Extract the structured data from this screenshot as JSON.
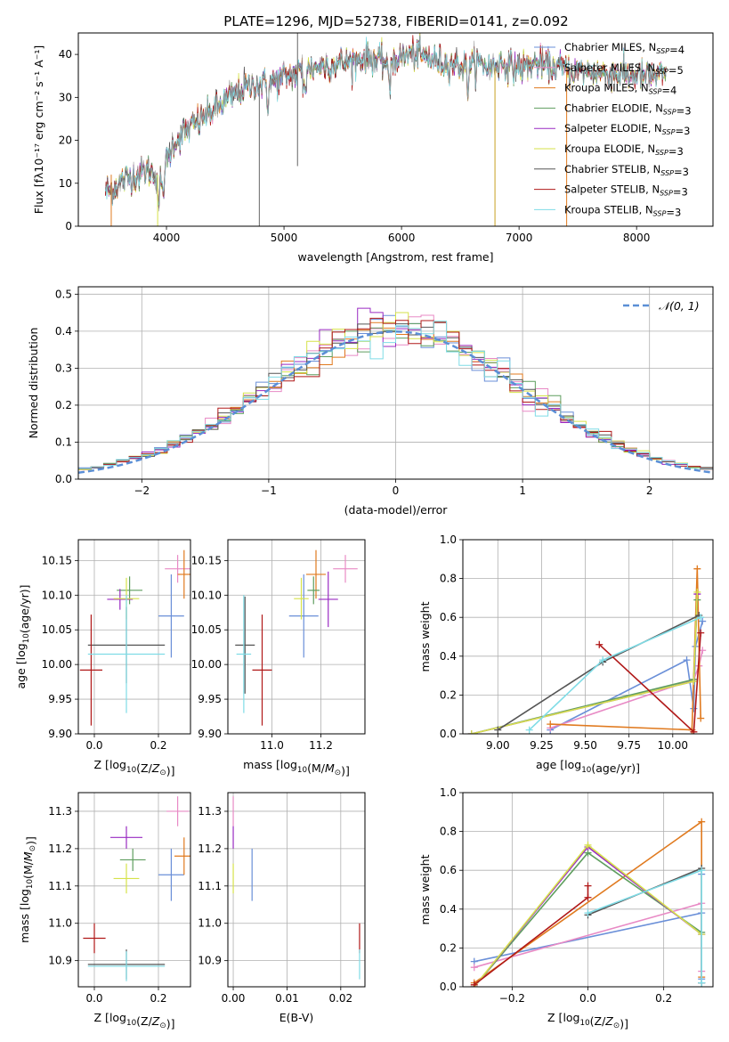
{
  "figure_title": "PLATE=1296, MJD=52738, FIBERID=0141, z=0.092",
  "colors": {
    "Chabrier MILES": "#6a8fd8",
    "Salpeter MILES": "#e88ac5",
    "Kroupa MILES": "#e07a1f",
    "Chabrier ELODIE": "#5f9e5f",
    "Salpeter ELODIE": "#9a2bc2",
    "Kroupa ELODIE": "#d6e24a",
    "Chabrier STELIB": "#555555",
    "Salpeter STELIB": "#b01818",
    "Kroupa STELIB": "#7fdce6",
    "normal_curve": "#5b8fd6"
  },
  "chart_data": [
    {
      "id": "spectrum",
      "type": "line",
      "title": "PLATE=1296, MJD=52738, FIBERID=0141, z=0.092",
      "xlabel": "wavelength [Angstrom, rest frame]",
      "ylabel": "Flux [fλ10⁻¹⁷ erg cm⁻² s⁻¹ A⁻¹]",
      "xlim": [
        3250,
        8650
      ],
      "ylim": [
        0,
        45
      ],
      "xticks": [
        4000,
        5000,
        6000,
        7000,
        8000
      ],
      "yticks": [
        0,
        10,
        20,
        30,
        40
      ],
      "grid": false,
      "legend": "upper right",
      "legend_entries": [
        "Chabrier MILES, N_SSP=4",
        "Salpeter MILES, N_SSP=5",
        "Kroupa MILES, N_SSP=4",
        "Chabrier ELODIE, N_SSP=3",
        "Salpeter ELODIE, N_SSP=3",
        "Kroupa ELODIE, N_SSP=3",
        "Chabrier STELIB, N_SSP=3",
        "Salpeter STELIB, N_SSP=3",
        "Kroupa STELIB, N_SSP=3"
      ],
      "continuum": {
        "x": [
          3480,
          3550,
          3650,
          3750,
          3850,
          3950,
          4050,
          4150,
          4250,
          4350,
          4450,
          4550,
          4650,
          4750,
          4850,
          4950,
          5050,
          5150,
          5250,
          5350,
          5450,
          5550,
          5650,
          5750,
          5850,
          5950,
          6050,
          6150,
          6250,
          6350,
          6450,
          6550,
          6650,
          6750,
          6850,
          6950,
          7050,
          7150,
          7250,
          7350,
          7450,
          7550,
          7650,
          7750,
          7850,
          7950,
          8050,
          8150,
          8250
        ],
        "y": [
          8,
          9,
          11,
          12,
          13,
          11,
          19,
          22,
          24,
          26,
          28,
          30,
          32,
          33,
          33,
          34,
          35,
          36,
          37,
          37.5,
          38,
          38,
          39,
          39,
          38,
          39,
          40,
          40,
          39,
          38,
          38,
          37,
          38,
          37,
          38,
          37,
          37,
          38,
          37,
          37,
          36,
          36,
          36,
          35.5,
          35.5,
          35,
          35,
          35,
          35
        ]
      },
      "spikes": [
        {
          "x": 4790,
          "y_top": 33,
          "y_bottom": 0
        },
        {
          "x": 5115,
          "y_top": 45,
          "y_bottom": 14
        },
        {
          "x": 6795,
          "y_top": 37,
          "y_bottom": 0
        },
        {
          "x": 7405,
          "y_top": 37,
          "y_bottom": 0
        }
      ]
    },
    {
      "id": "residuals",
      "type": "histogram",
      "xlabel": "(data-model)/error",
      "ylabel": "Normed distribution",
      "xlim": [
        -2.5,
        2.5
      ],
      "ylim": [
        0,
        0.52
      ],
      "xticks": [
        -2,
        -1,
        0,
        1,
        2
      ],
      "yticks": [
        0.0,
        0.1,
        0.2,
        0.3,
        0.4,
        0.5
      ],
      "grid": true,
      "legend": "upper right",
      "legend_entries": [
        "𝒩(0, 1)"
      ],
      "bin_width": 0.1
    },
    {
      "id": "age_vs_Z",
      "type": "scatter",
      "xlabel": "Z [log10(Z/Z⊙)]",
      "ylabel": "age  [log10(age/yr)]",
      "xlim": [
        -0.05,
        0.3
      ],
      "ylim": [
        9.9,
        10.18
      ],
      "xticks": [
        0.0,
        0.2
      ],
      "yticks": [
        9.9,
        9.95,
        10.0,
        10.05,
        10.1,
        10.15
      ],
      "grid": true,
      "points": [
        {
          "series": "Chabrier MILES",
          "x": 0.24,
          "y": 10.07,
          "xerr": 0.04,
          "yerr": 0.06
        },
        {
          "series": "Salpeter MILES",
          "x": 0.26,
          "y": 10.138,
          "xerr": 0.04,
          "yerr": 0.02
        },
        {
          "series": "Kroupa MILES",
          "x": 0.28,
          "y": 10.13,
          "xerr": 0.02,
          "yerr": 0.035
        },
        {
          "series": "Chabrier ELODIE",
          "x": 0.11,
          "y": 10.107,
          "xerr": 0.04,
          "yerr": 0.02
        },
        {
          "series": "Salpeter ELODIE",
          "x": 0.08,
          "y": 10.094,
          "xerr": 0.04,
          "yerr": 0.015
        },
        {
          "series": "Kroupa ELODIE",
          "x": 0.1,
          "y": 10.095,
          "xerr": 0.04,
          "yerr": 0.03
        },
        {
          "series": "Chabrier STELIB",
          "x": 0.1,
          "y": 10.028,
          "xerr": 0.12,
          "yerr": 0.055
        },
        {
          "series": "Salpeter STELIB",
          "x": -0.01,
          "y": 9.992,
          "xerr": 0.035,
          "yerr": 0.08
        },
        {
          "series": "Kroupa STELIB",
          "x": 0.1,
          "y": 10.015,
          "xerr": 0.12,
          "yerr": 0.085
        }
      ]
    },
    {
      "id": "age_vs_mass",
      "type": "scatter",
      "xlabel": "mass [log10(M/M⊙)]",
      "ylabel": "",
      "xlim": [
        10.82,
        11.38
      ],
      "ylim": [
        9.9,
        10.18
      ],
      "xticks": [
        11.0,
        11.2
      ],
      "yticks": [
        9.9,
        9.95,
        10.0,
        10.05,
        10.1,
        10.15
      ],
      "grid": true,
      "points": [
        {
          "series": "Chabrier MILES",
          "x": 11.13,
          "y": 10.07,
          "xerr": 0.06,
          "yerr": 0.06
        },
        {
          "series": "Salpeter MILES",
          "x": 11.3,
          "y": 10.138,
          "xerr": 0.05,
          "yerr": 0.02
        },
        {
          "series": "Kroupa MILES",
          "x": 11.18,
          "y": 10.13,
          "xerr": 0.04,
          "yerr": 0.035
        },
        {
          "series": "Chabrier ELODIE",
          "x": 11.17,
          "y": 10.107,
          "xerr": 0.025,
          "yerr": 0.02
        },
        {
          "series": "Salpeter ELODIE",
          "x": 11.23,
          "y": 10.094,
          "xerr": 0.04,
          "yerr": 0.04
        },
        {
          "series": "Kroupa ELODIE",
          "x": 11.12,
          "y": 10.095,
          "xerr": 0.03,
          "yerr": 0.03
        },
        {
          "series": "Chabrier STELIB",
          "x": 10.89,
          "y": 10.028,
          "xerr": 0.04,
          "yerr": 0.07
        },
        {
          "series": "Salpeter STELIB",
          "x": 10.96,
          "y": 9.992,
          "xerr": 0.04,
          "yerr": 0.08
        },
        {
          "series": "Kroupa STELIB",
          "x": 10.885,
          "y": 10.015,
          "xerr": 0.03,
          "yerr": 0.085
        }
      ]
    },
    {
      "id": "weight_vs_age",
      "type": "line",
      "xlabel": "age  [log10(age/yr)]",
      "ylabel": "mass weight",
      "xlim": [
        8.8,
        10.23
      ],
      "ylim": [
        0,
        1.0
      ],
      "xticks": [
        9.0,
        9.25,
        9.5,
        9.75,
        10.0
      ],
      "yticks": [
        0.0,
        0.2,
        0.4,
        0.6,
        0.8,
        1.0
      ],
      "grid": true,
      "series": [
        {
          "name": "Chabrier MILES",
          "x": [
            9.3,
            10.08,
            10.12,
            10.13,
            10.17
          ],
          "y": [
            0.02,
            0.38,
            0.13,
            0.45,
            0.58
          ]
        },
        {
          "name": "Salpeter MILES",
          "x": [
            9.3,
            10.12,
            10.15,
            10.17
          ],
          "y": [
            0.03,
            0.28,
            0.35,
            0.43
          ]
        },
        {
          "name": "Kroupa MILES",
          "x": [
            9.3,
            10.11,
            10.14,
            10.16
          ],
          "y": [
            0.05,
            0.02,
            0.85,
            0.08
          ]
        },
        {
          "name": "Chabrier ELODIE",
          "x": [
            8.85,
            10.12,
            10.14
          ],
          "y": [
            0.0,
            0.28,
            0.69
          ]
        },
        {
          "name": "Salpeter ELODIE",
          "x": [
            8.85,
            10.12,
            10.14
          ],
          "y": [
            0.0,
            0.27,
            0.72
          ]
        },
        {
          "name": "Kroupa ELODIE",
          "x": [
            8.85,
            10.12,
            10.14
          ],
          "y": [
            0.0,
            0.27,
            0.73
          ]
        },
        {
          "name": "Chabrier STELIB",
          "x": [
            9.0,
            9.6,
            10.15
          ],
          "y": [
            0.02,
            0.37,
            0.61
          ]
        },
        {
          "name": "Salpeter STELIB",
          "x": [
            9.58,
            10.12,
            10.16
          ],
          "y": [
            0.46,
            0.01,
            0.52
          ]
        },
        {
          "name": "Kroupa STELIB",
          "x": [
            9.18,
            9.6,
            10.16
          ],
          "y": [
            0.02,
            0.38,
            0.6
          ]
        }
      ]
    },
    {
      "id": "mass_vs_Z",
      "type": "scatter",
      "xlabel": "Z [log10(Z/Z⊙)]",
      "ylabel": "mass [log10(M/M⊙)]",
      "xlim": [
        -0.05,
        0.3
      ],
      "ylim": [
        10.83,
        11.35
      ],
      "xticks": [
        0.0,
        0.2
      ],
      "yticks": [
        10.9,
        11.0,
        11.1,
        11.2,
        11.3
      ],
      "grid": true,
      "points": [
        {
          "series": "Chabrier MILES",
          "x": 0.24,
          "y": 11.13,
          "xerr": 0.04,
          "yerr": 0.07
        },
        {
          "series": "Salpeter MILES",
          "x": 0.26,
          "y": 11.3,
          "xerr": 0.035,
          "yerr": 0.04
        },
        {
          "series": "Kroupa MILES",
          "x": 0.28,
          "y": 11.18,
          "xerr": 0.03,
          "yerr": 0.05
        },
        {
          "series": "Chabrier ELODIE",
          "x": 0.12,
          "y": 11.17,
          "xerr": 0.04,
          "yerr": 0.03
        },
        {
          "series": "Salpeter ELODIE",
          "x": 0.1,
          "y": 11.23,
          "xerr": 0.05,
          "yerr": 0.03
        },
        {
          "series": "Kroupa ELODIE",
          "x": 0.1,
          "y": 11.12,
          "xerr": 0.04,
          "yerr": 0.04
        },
        {
          "series": "Chabrier STELIB",
          "x": 0.1,
          "y": 10.89,
          "xerr": 0.12,
          "yerr": 0.04
        },
        {
          "series": "Salpeter STELIB",
          "x": 0.0,
          "y": 10.96,
          "xerr": 0.035,
          "yerr": 0.04
        },
        {
          "series": "Kroupa STELIB",
          "x": 0.1,
          "y": 10.885,
          "xerr": 0.12,
          "yerr": 0.04
        }
      ]
    },
    {
      "id": "mass_vs_ebv",
      "type": "scatter",
      "xlabel": "E(B-V)",
      "ylabel": "",
      "xlim": [
        -0.001,
        0.0245
      ],
      "ylim": [
        10.83,
        11.35
      ],
      "xticks": [
        0.0,
        0.01,
        0.02
      ],
      "yticks": [
        10.9,
        11.0,
        11.1,
        11.2,
        11.3
      ],
      "grid": true,
      "points": [
        {
          "series": "Chabrier MILES",
          "x": 0.0035,
          "y": 11.13,
          "xerr": 0.0,
          "yerr": 0.07
        },
        {
          "series": "Salpeter MILES",
          "x": 0.0,
          "y": 11.3,
          "xerr": 0.0,
          "yerr": 0.04
        },
        {
          "series": "Salpeter ELODIE",
          "x": 0.0,
          "y": 11.23,
          "xerr": 0.0,
          "yerr": 0.03
        },
        {
          "series": "Kroupa ELODIE",
          "x": 0.0,
          "y": 11.12,
          "xerr": 0.0,
          "yerr": 0.04
        },
        {
          "series": "Salpeter STELIB",
          "x": 0.0235,
          "y": 10.96,
          "xerr": 0.0,
          "yerr": 0.04
        },
        {
          "series": "Kroupa STELIB",
          "x": 0.0235,
          "y": 10.89,
          "xerr": 0.0,
          "yerr": 0.04
        }
      ]
    },
    {
      "id": "weight_vs_Z",
      "type": "line",
      "xlabel": "Z [log10(Z/Z⊙)]",
      "ylabel": "mass weight",
      "xlim": [
        -0.33,
        0.33
      ],
      "ylim": [
        0,
        1.0
      ],
      "xticks": [
        -0.2,
        0.0,
        0.2
      ],
      "yticks": [
        0.0,
        0.2,
        0.4,
        0.6,
        0.8,
        1.0
      ],
      "grid": true,
      "series": [
        {
          "name": "Chabrier MILES",
          "x": [
            -0.3,
            0.3,
            0.3,
            0.3
          ],
          "y": [
            0.13,
            0.38,
            0.04,
            0.58
          ]
        },
        {
          "name": "Salpeter MILES",
          "x": [
            -0.3,
            0.3,
            0.3,
            0.3
          ],
          "y": [
            0.1,
            0.43,
            0.08,
            0.02
          ]
        },
        {
          "name": "Kroupa MILES",
          "x": [
            -0.3,
            0.3,
            0.3
          ],
          "y": [
            0.02,
            0.85,
            0.05
          ]
        },
        {
          "name": "Chabrier ELODIE",
          "x": [
            -0.3,
            0.0,
            0.3
          ],
          "y": [
            0.0,
            0.69,
            0.28
          ]
        },
        {
          "name": "Salpeter ELODIE",
          "x": [
            -0.3,
            0.0,
            0.3
          ],
          "y": [
            0.0,
            0.72,
            0.27
          ]
        },
        {
          "name": "Kroupa ELODIE",
          "x": [
            -0.3,
            0.0,
            0.3
          ],
          "y": [
            0.0,
            0.73,
            0.27
          ]
        },
        {
          "name": "Chabrier STELIB",
          "x": [
            0.0,
            0.3,
            0.3
          ],
          "y": [
            0.37,
            0.61,
            0.02
          ]
        },
        {
          "name": "Salpeter STELIB",
          "x": [
            -0.3,
            0.0,
            0.0
          ],
          "y": [
            0.01,
            0.46,
            0.52
          ]
        },
        {
          "name": "Kroupa STELIB",
          "x": [
            0.0,
            0.3,
            0.3
          ],
          "y": [
            0.38,
            0.6,
            0.02
          ]
        }
      ]
    }
  ]
}
